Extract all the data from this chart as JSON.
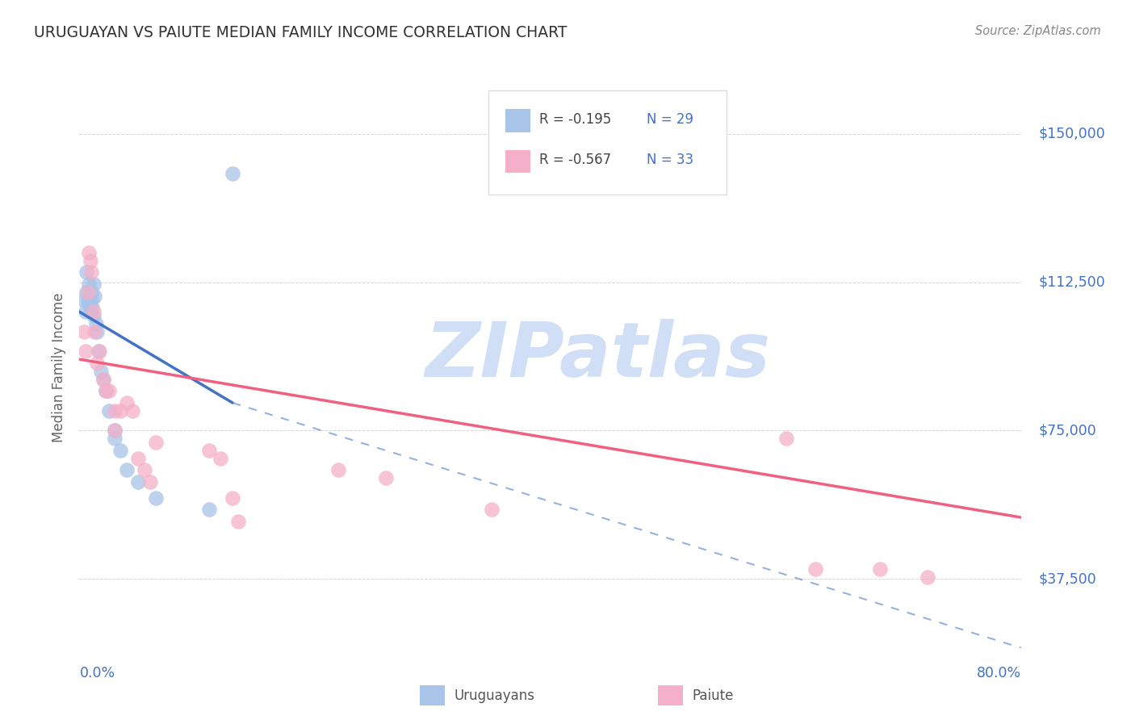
{
  "title": "URUGUAYAN VS PAIUTE MEDIAN FAMILY INCOME CORRELATION CHART",
  "source": "Source: ZipAtlas.com",
  "ylabel": "Median Family Income",
  "yticks": [
    37500,
    75000,
    112500,
    150000
  ],
  "ytick_labels": [
    "$37,500",
    "$75,000",
    "$112,500",
    "$150,000"
  ],
  "xmin": 0.0,
  "xmax": 0.8,
  "ymin": 20000,
  "ymax": 162000,
  "watermark": "ZIPatlas",
  "legend": {
    "blue_r": "R = -0.195",
    "blue_n": "N = 29",
    "pink_r": "R = -0.567",
    "pink_n": "N = 33"
  },
  "blue_color": "#a8c4e8",
  "pink_color": "#f4b0c8",
  "blue_line_color": "#4472c4",
  "pink_line_color": "#f06080",
  "blue_scatter": {
    "x": [
      0.004,
      0.005,
      0.006,
      0.006,
      0.007,
      0.008,
      0.008,
      0.009,
      0.01,
      0.01,
      0.011,
      0.012,
      0.012,
      0.013,
      0.014,
      0.015,
      0.016,
      0.018,
      0.02,
      0.022,
      0.025,
      0.03,
      0.03,
      0.035,
      0.04,
      0.05,
      0.065,
      0.11,
      0.13
    ],
    "y": [
      108000,
      105000,
      110000,
      115000,
      108000,
      112000,
      107000,
      105000,
      110000,
      108000,
      106000,
      104000,
      112000,
      109000,
      102000,
      100000,
      95000,
      90000,
      88000,
      85000,
      80000,
      75000,
      73000,
      70000,
      65000,
      62000,
      58000,
      55000,
      140000
    ]
  },
  "pink_scatter": {
    "x": [
      0.004,
      0.005,
      0.007,
      0.008,
      0.009,
      0.01,
      0.012,
      0.013,
      0.015,
      0.017,
      0.02,
      0.022,
      0.025,
      0.03,
      0.03,
      0.035,
      0.04,
      0.045,
      0.05,
      0.055,
      0.06,
      0.065,
      0.11,
      0.12,
      0.13,
      0.135,
      0.22,
      0.26,
      0.35,
      0.6,
      0.625,
      0.68,
      0.72
    ],
    "y": [
      100000,
      95000,
      110000,
      120000,
      118000,
      115000,
      105000,
      100000,
      92000,
      95000,
      88000,
      85000,
      85000,
      80000,
      75000,
      80000,
      82000,
      80000,
      68000,
      65000,
      62000,
      72000,
      70000,
      68000,
      58000,
      52000,
      65000,
      63000,
      55000,
      73000,
      40000,
      40000,
      38000
    ]
  },
  "blue_regression": {
    "x_solid_start": 0.0,
    "x_solid_end": 0.13,
    "x_dash_start": 0.13,
    "x_dash_end": 0.8,
    "y_at_0": 105000,
    "y_at_013": 82000,
    "y_at_080": 20000
  },
  "pink_regression": {
    "x_start": 0.0,
    "x_end": 0.8,
    "y_at_0": 93000,
    "y_at_080": 53000
  },
  "background_color": "#ffffff",
  "grid_color": "#cccccc",
  "title_color": "#333333",
  "axis_label_color": "#666666",
  "tick_color": "#4472c4",
  "watermark_color": "#d0dff5",
  "source_color": "#888888"
}
